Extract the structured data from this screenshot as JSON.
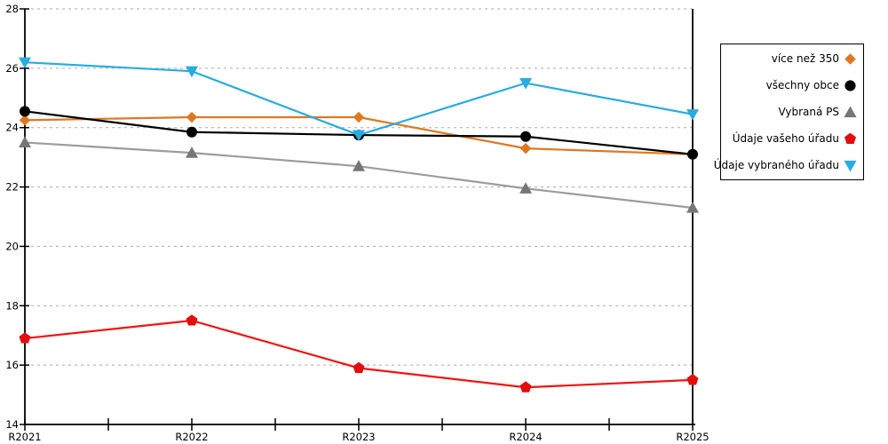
{
  "chart_data": {
    "type": "line",
    "title": "",
    "xlabel": "",
    "ylabel": "",
    "x_labels": [
      "R2021",
      "R2022",
      "R2023",
      "R2024",
      "R2025"
    ],
    "y_ticks": [
      28,
      26,
      24,
      22,
      20,
      18,
      16,
      14
    ],
    "ylim": [
      14,
      28
    ],
    "grid": "horizontal-dashed",
    "legend_position": "outside-right",
    "series": [
      {
        "name": "více než 350",
        "color": "#E0771E",
        "marker_color": "#E0771E",
        "marker": "diamond",
        "values": [
          24.25,
          24.35,
          24.35,
          23.3,
          23.1
        ]
      },
      {
        "name": "všechny obce",
        "color": "#000000",
        "marker_color": "#000000",
        "marker": "circle",
        "values": [
          24.55,
          23.85,
          23.75,
          23.7,
          23.1
        ]
      },
      {
        "name": "Vybraná PS",
        "color": "#9C9C9C",
        "marker_color": "#767676",
        "marker": "triangle-up",
        "values": [
          23.5,
          23.15,
          22.7,
          21.95,
          21.3
        ]
      },
      {
        "name": "Údaje vašeho úřadu",
        "color": "#F41212",
        "marker_color": "#E30D0D",
        "marker": "pentagon",
        "values": [
          16.9,
          17.5,
          15.9,
          15.25,
          15.5
        ]
      },
      {
        "name": "Údaje vybraného úřadu",
        "color": "#29ABE2",
        "marker_color": "#29ABE2",
        "marker": "triangle-down",
        "values": [
          26.2,
          25.9,
          23.75,
          25.5,
          24.45
        ]
      }
    ]
  },
  "colors": {
    "background": "#FFFFFF",
    "grid": "#AAAAAA",
    "axis": "#000000",
    "tick_label": "#000000",
    "legend_border": "#000000"
  }
}
